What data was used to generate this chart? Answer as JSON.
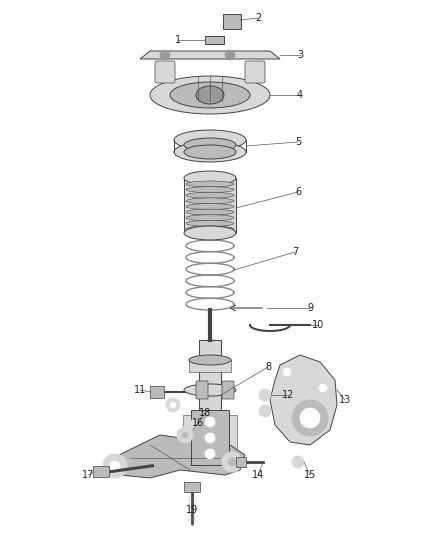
{
  "background_color": "#ffffff",
  "figure_width": 4.38,
  "figure_height": 5.33,
  "dpi": 100,
  "label_fontsize": 7.0,
  "label_color": "#222222",
  "line_color": "#555555",
  "part_edge_color": "#444444",
  "part_face_light": "#d8d8d8",
  "part_face_mid": "#bbbbbb",
  "part_face_dark": "#999999"
}
